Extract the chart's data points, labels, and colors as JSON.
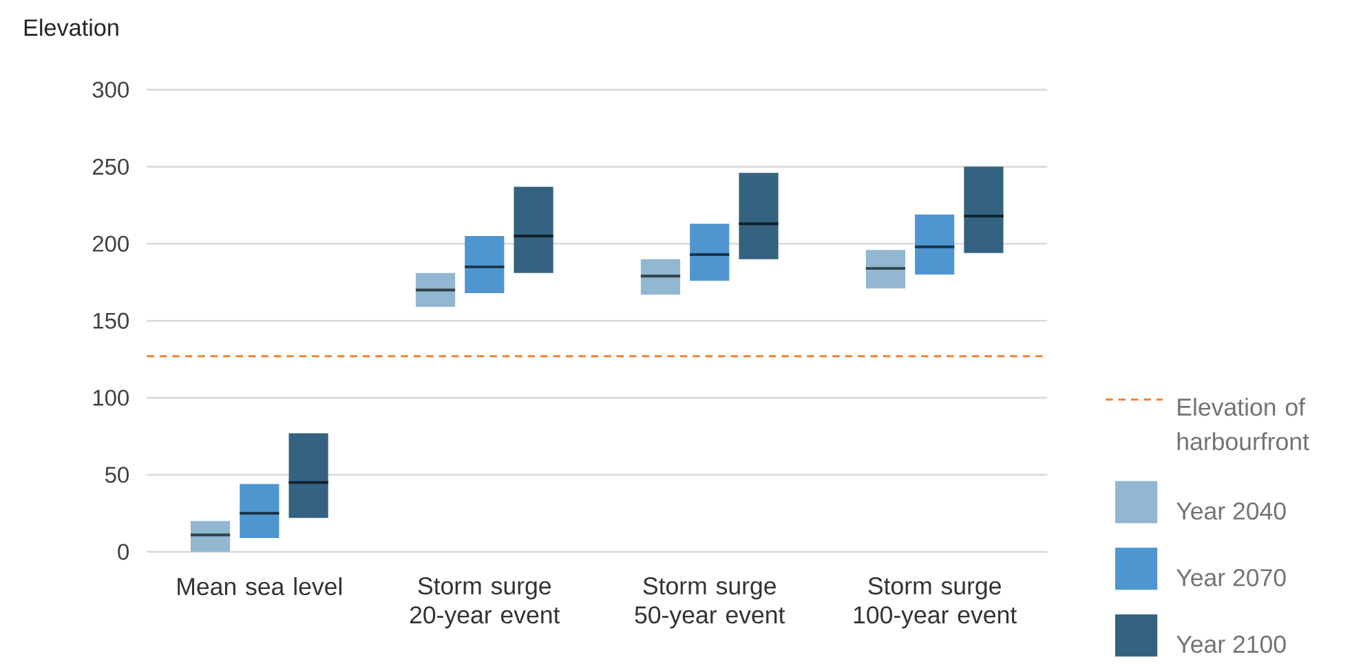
{
  "chart_data": {
    "type": "box",
    "ylabel": "Elevation",
    "categories": [
      "Mean sea level",
      "Storm surge 20-year event",
      "Storm surge 50-year event",
      "Storm surge 100-year event"
    ],
    "series": [
      {
        "name": "Year 2040",
        "color": "#92b7d1",
        "boxes": [
          {
            "low": 0,
            "q1": 0,
            "median": 11,
            "q3": 20,
            "high": 20
          },
          {
            "low": 159,
            "q1": 159,
            "median": 170,
            "q3": 181,
            "high": 181
          },
          {
            "low": 167,
            "q1": 167,
            "median": 179,
            "q3": 190,
            "high": 190
          },
          {
            "low": 171,
            "q1": 171,
            "median": 184,
            "q3": 196,
            "high": 196
          }
        ]
      },
      {
        "name": "Year 2070",
        "color": "#4f96d0",
        "boxes": [
          {
            "low": 9,
            "q1": 9,
            "median": 25,
            "q3": 44,
            "high": 44
          },
          {
            "low": 168,
            "q1": 168,
            "median": 185,
            "q3": 205,
            "high": 205
          },
          {
            "low": 176,
            "q1": 176,
            "median": 193,
            "q3": 213,
            "high": 213
          },
          {
            "low": 180,
            "q1": 180,
            "median": 198,
            "q3": 219,
            "high": 219
          }
        ]
      },
      {
        "name": "Year 2100",
        "color": "#356280",
        "boxes": [
          {
            "low": 22,
            "q1": 22,
            "median": 45,
            "q3": 77,
            "high": 77
          },
          {
            "low": 181,
            "q1": 181,
            "median": 205,
            "q3": 237,
            "high": 237
          },
          {
            "low": 190,
            "q1": 190,
            "median": 213,
            "q3": 246,
            "high": 246
          },
          {
            "low": 194,
            "q1": 194,
            "median": 218,
            "q3": 250,
            "high": 250
          }
        ]
      }
    ],
    "ylim": [
      0,
      300
    ],
    "yticks": [
      0,
      50,
      100,
      150,
      200,
      250,
      300
    ],
    "grid": "y",
    "legend": "right",
    "ref_lines": [
      {
        "axis": "y",
        "value": 127,
        "label": "Elevation of harbourfront",
        "color": "#f4812f",
        "line_style": "dashed"
      }
    ]
  }
}
